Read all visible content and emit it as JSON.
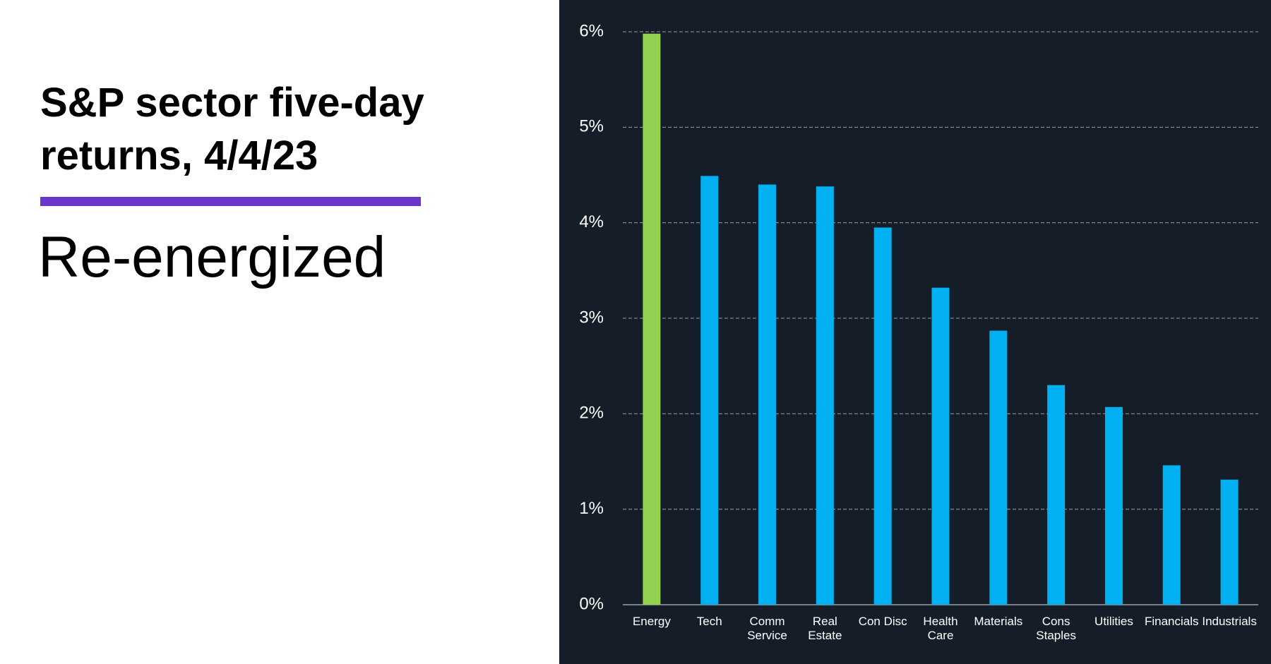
{
  "chart_data": {
    "type": "bar",
    "title": "S&P sector five-day returns, 4/4/23",
    "subtitle": "Re-energized",
    "categories": [
      [
        "Energy"
      ],
      [
        "Tech"
      ],
      [
        "Comm",
        "Service"
      ],
      [
        "Real",
        "Estate"
      ],
      [
        "Con Disc"
      ],
      [
        "Health",
        "Care"
      ],
      [
        "Materials"
      ],
      [
        "Cons",
        "Staples"
      ],
      [
        "Utilities"
      ],
      [
        "Financials"
      ],
      [
        "Industrials"
      ]
    ],
    "values": [
      5.98,
      4.49,
      4.4,
      4.38,
      3.95,
      3.32,
      2.87,
      2.3,
      2.07,
      1.46,
      1.31
    ],
    "colors": [
      "#92d050",
      "#00b0f0",
      "#00b0f0",
      "#00b0f0",
      "#00b0f0",
      "#00b0f0",
      "#00b0f0",
      "#00b0f0",
      "#00b0f0",
      "#00b0f0",
      "#00b0f0"
    ],
    "ylim": [
      0,
      6
    ],
    "yticks": [
      {
        "value": 0,
        "label": "0%"
      },
      {
        "value": 1,
        "label": "1%"
      },
      {
        "value": 2,
        "label": "2%"
      },
      {
        "value": 3,
        "label": "3%"
      },
      {
        "value": 4,
        "label": "4%"
      },
      {
        "value": 5,
        "label": "5%"
      },
      {
        "value": 6,
        "label": "6%"
      }
    ],
    "grid": true
  }
}
